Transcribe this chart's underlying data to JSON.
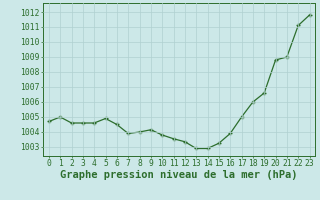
{
  "x": [
    0,
    1,
    2,
    3,
    4,
    5,
    6,
    7,
    8,
    9,
    10,
    11,
    12,
    13,
    14,
    15,
    16,
    17,
    18,
    19,
    20,
    21,
    22,
    23
  ],
  "y": [
    1004.7,
    1005.0,
    1004.6,
    1004.6,
    1004.6,
    1004.9,
    1004.5,
    1003.9,
    1004.0,
    1004.15,
    1003.8,
    1003.55,
    1003.35,
    1002.9,
    1002.9,
    1003.25,
    1003.9,
    1005.0,
    1006.0,
    1006.6,
    1008.8,
    1009.0,
    1011.1,
    1011.8
  ],
  "line_color": "#2d6e2d",
  "marker_color": "#2d6e2d",
  "bg_color": "#cce8e8",
  "grid_color": "#b0d0d0",
  "xlabel": "Graphe pression niveau de la mer (hPa)",
  "xlabel_fontsize": 7.5,
  "ylabel_ticks": [
    1003,
    1004,
    1005,
    1006,
    1007,
    1008,
    1009,
    1010,
    1011,
    1012
  ],
  "ylim": [
    1002.4,
    1012.6
  ],
  "xlim": [
    -0.5,
    23.5
  ],
  "tick_fontsize": 5.8,
  "label_color": "#2d6e2d"
}
